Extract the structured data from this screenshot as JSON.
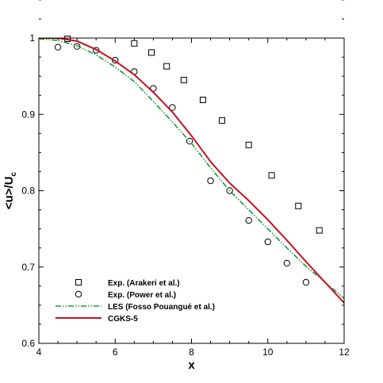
{
  "chart_data": {
    "type": "scatter",
    "xlabel": "x",
    "ylabel": "<u>/U",
    "ylabel_subscript": "c",
    "xlim": [
      4,
      12
    ],
    "ylim": [
      0.6,
      1.0
    ],
    "xticks": [
      4,
      6,
      8,
      10,
      12
    ],
    "yticks": [
      0.6,
      0.7,
      0.8,
      0.9,
      1.0
    ],
    "xtick_labels": [
      "4",
      "6",
      "8",
      "10",
      "12"
    ],
    "ytick_labels": [
      "0.6",
      "0.7",
      "0.8",
      "0.9",
      "1"
    ],
    "grid": false,
    "legend_position": "bottom-left",
    "series": [
      {
        "name": "Exp. (Arakeri et al.)",
        "kind": "marker",
        "marker": "square",
        "color": "#000000",
        "x": [
          4.75,
          6.5,
          6.95,
          7.35,
          7.8,
          8.3,
          8.8,
          9.5,
          10.1,
          10.8,
          11.35
        ],
        "y": [
          0.999,
          0.993,
          0.981,
          0.963,
          0.945,
          0.919,
          0.892,
          0.86,
          0.82,
          0.78,
          0.748
        ]
      },
      {
        "name": "Exp. (Power et al.)",
        "kind": "marker",
        "marker": "circle",
        "color": "#000000",
        "x": [
          4.5,
          5.0,
          5.5,
          6.0,
          6.5,
          7.0,
          7.5,
          7.95,
          8.5,
          9.0,
          9.5,
          10.0,
          10.5,
          11.0
        ],
        "y": [
          0.988,
          0.989,
          0.984,
          0.971,
          0.956,
          0.934,
          0.909,
          0.865,
          0.813,
          0.8,
          0.761,
          0.733,
          0.705,
          0.68
        ]
      },
      {
        "name": "LES (Fosso Pouangué et al.)",
        "kind": "line",
        "dash": "dashdotdot",
        "color": "#1a9a3c",
        "x": [
          4.0,
          4.5,
          5.0,
          5.5,
          6.0,
          6.5,
          7.0,
          7.5,
          8.0,
          8.5,
          9.0,
          9.5,
          10.0,
          10.5,
          11.0,
          11.5,
          12.0
        ],
        "y": [
          0.999,
          0.997,
          0.99,
          0.978,
          0.962,
          0.943,
          0.917,
          0.89,
          0.862,
          0.83,
          0.8,
          0.775,
          0.75,
          0.725,
          0.701,
          0.68,
          0.659
        ]
      },
      {
        "name": "CGKS-5",
        "kind": "line",
        "dash": "solid",
        "color": "#c8101e",
        "x": [
          4.0,
          4.5,
          5.0,
          5.5,
          6.0,
          6.5,
          7.0,
          7.5,
          8.0,
          8.5,
          9.0,
          9.5,
          10.0,
          10.5,
          11.0,
          11.5,
          12.0
        ],
        "y": [
          1.0,
          1.0,
          0.996,
          0.985,
          0.97,
          0.952,
          0.929,
          0.903,
          0.872,
          0.838,
          0.81,
          0.787,
          0.762,
          0.735,
          0.707,
          0.68,
          0.653
        ]
      }
    ]
  }
}
